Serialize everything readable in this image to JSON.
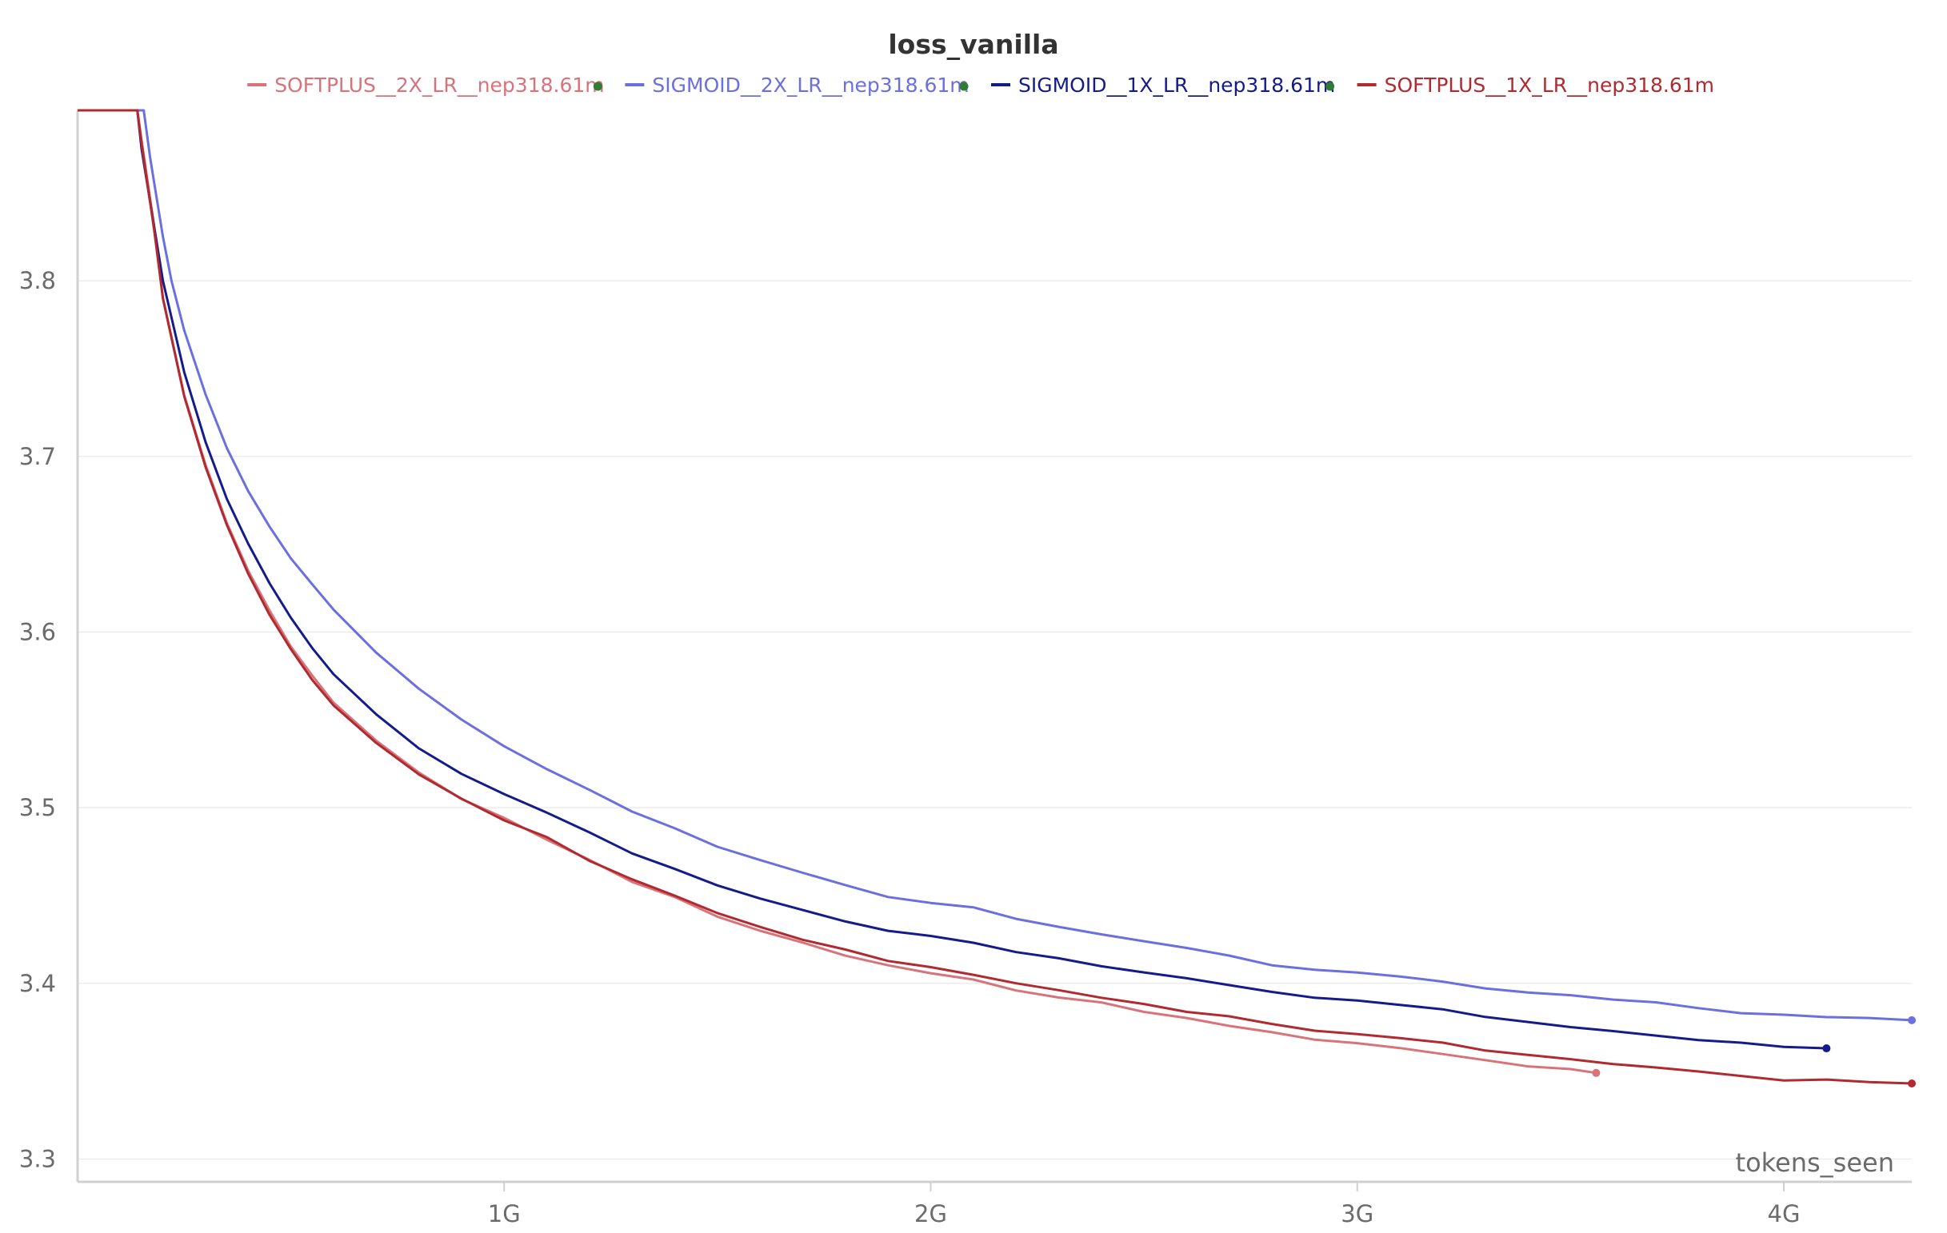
{
  "chart_data": {
    "type": "line",
    "title": "loss_vanilla",
    "xlabel": "tokens_seen",
    "ylabel": "",
    "xlim": [
      0,
      4.3
    ],
    "ylim": [
      3.287,
      3.897
    ],
    "x_unit": "G",
    "x_ticks": [
      {
        "value": 1,
        "label": "1G"
      },
      {
        "value": 2,
        "label": "2G"
      },
      {
        "value": 3,
        "label": "3G"
      },
      {
        "value": 4,
        "label": "4G"
      }
    ],
    "y_ticks": [
      {
        "value": 3.3,
        "label": "3.3"
      },
      {
        "value": 3.4,
        "label": "3.4"
      },
      {
        "value": 3.5,
        "label": "3.5"
      },
      {
        "value": 3.6,
        "label": "3.6"
      },
      {
        "value": 3.7,
        "label": "3.7"
      },
      {
        "value": 3.8,
        "label": "3.8"
      }
    ],
    "grid": "horizontal",
    "legend_position": "top",
    "series": [
      {
        "name": "SOFTPLUS__2X_LR__nep318.61m",
        "color": "#d9737a",
        "has_dot": true,
        "x": [
          0,
          0.14,
          0.15,
          0.18,
          0.2,
          0.25,
          0.3,
          0.35,
          0.4,
          0.45,
          0.5,
          0.55,
          0.6,
          0.7,
          0.8,
          0.9,
          1.0,
          1.1,
          1.2,
          1.3,
          1.4,
          1.5,
          1.6,
          1.7,
          1.8,
          1.9,
          2.0,
          2.1,
          2.2,
          2.3,
          2.4,
          2.5,
          2.6,
          2.7,
          2.8,
          2.9,
          3.0,
          3.1,
          3.2,
          3.3,
          3.4,
          3.5,
          3.56
        ],
        "y": [
          3.897,
          3.897,
          3.88,
          3.83,
          3.79,
          3.735,
          3.695,
          3.662,
          3.635,
          3.612,
          3.592,
          3.575,
          3.56,
          3.538,
          3.52,
          3.505,
          3.494,
          3.482,
          3.47,
          3.458,
          3.449,
          3.438,
          3.43,
          3.423,
          3.416,
          3.41,
          3.406,
          3.402,
          3.396,
          3.392,
          3.389,
          3.384,
          3.38,
          3.376,
          3.372,
          3.368,
          3.366,
          3.363,
          3.36,
          3.356,
          3.353,
          3.351,
          3.349
        ]
      },
      {
        "name": "SIGMOID__2X_LR__nep318.61m",
        "color": "#6b6fe0",
        "has_dot": true,
        "x": [
          0,
          0.155,
          0.17,
          0.2,
          0.22,
          0.25,
          0.3,
          0.35,
          0.4,
          0.45,
          0.5,
          0.55,
          0.6,
          0.7,
          0.8,
          0.9,
          1.0,
          1.1,
          1.2,
          1.3,
          1.4,
          1.5,
          1.6,
          1.7,
          1.8,
          1.9,
          2.0,
          2.1,
          2.2,
          2.3,
          2.4,
          2.5,
          2.6,
          2.7,
          2.8,
          2.9,
          3.0,
          3.1,
          3.2,
          3.3,
          3.4,
          3.5,
          3.6,
          3.7,
          3.8,
          3.9,
          4.0,
          4.1,
          4.2,
          4.3
        ],
        "y": [
          3.897,
          3.897,
          3.87,
          3.825,
          3.8,
          3.772,
          3.735,
          3.705,
          3.68,
          3.66,
          3.642,
          3.627,
          3.613,
          3.588,
          3.568,
          3.55,
          3.535,
          3.522,
          3.51,
          3.498,
          3.488,
          3.478,
          3.47,
          3.463,
          3.456,
          3.449,
          3.446,
          3.443,
          3.437,
          3.432,
          3.428,
          3.424,
          3.42,
          3.416,
          3.41,
          3.408,
          3.406,
          3.404,
          3.401,
          3.397,
          3.395,
          3.393,
          3.391,
          3.389,
          3.386,
          3.383,
          3.382,
          3.381,
          3.38,
          3.379
        ]
      },
      {
        "name": "SIGMOID__1X_LR__nep318.61m",
        "color": "#141c8c",
        "has_dot": true,
        "x": [
          0,
          0.14,
          0.15,
          0.18,
          0.2,
          0.25,
          0.3,
          0.35,
          0.4,
          0.45,
          0.5,
          0.55,
          0.6,
          0.7,
          0.8,
          0.9,
          1.0,
          1.1,
          1.2,
          1.3,
          1.4,
          1.5,
          1.6,
          1.7,
          1.8,
          1.9,
          2.0,
          2.1,
          2.2,
          2.3,
          2.4,
          2.5,
          2.6,
          2.7,
          2.8,
          2.9,
          3.0,
          3.1,
          3.2,
          3.3,
          3.4,
          3.5,
          3.6,
          3.7,
          3.8,
          3.9,
          4.0,
          4.1
        ],
        "y": [
          3.897,
          3.897,
          3.875,
          3.83,
          3.8,
          3.748,
          3.708,
          3.676,
          3.65,
          3.628,
          3.608,
          3.591,
          3.576,
          3.553,
          3.534,
          3.519,
          3.508,
          3.497,
          3.486,
          3.474,
          3.465,
          3.456,
          3.448,
          3.442,
          3.435,
          3.43,
          3.427,
          3.423,
          3.418,
          3.414,
          3.41,
          3.406,
          3.403,
          3.399,
          3.395,
          3.392,
          3.39,
          3.388,
          3.385,
          3.381,
          3.378,
          3.375,
          3.373,
          3.37,
          3.368,
          3.366,
          3.364,
          3.363
        ]
      },
      {
        "name": "SOFTPLUS__1X_LR__nep318.61m",
        "color": "#b02a30",
        "has_dot": false,
        "x": [
          0,
          0.14,
          0.15,
          0.18,
          0.2,
          0.25,
          0.3,
          0.35,
          0.4,
          0.45,
          0.5,
          0.55,
          0.6,
          0.7,
          0.8,
          0.9,
          1.0,
          1.1,
          1.2,
          1.3,
          1.4,
          1.5,
          1.6,
          1.7,
          1.8,
          1.9,
          2.0,
          2.1,
          2.2,
          2.3,
          2.4,
          2.5,
          2.6,
          2.7,
          2.8,
          2.9,
          3.0,
          3.1,
          3.2,
          3.3,
          3.4,
          3.5,
          3.6,
          3.7,
          3.8,
          3.9,
          4.0,
          4.1,
          4.2,
          4.3
        ],
        "y": [
          3.897,
          3.897,
          3.878,
          3.828,
          3.79,
          3.734,
          3.694,
          3.661,
          3.633,
          3.61,
          3.59,
          3.573,
          3.558,
          3.537,
          3.519,
          3.505,
          3.493,
          3.483,
          3.47,
          3.459,
          3.45,
          3.44,
          3.432,
          3.425,
          3.419,
          3.413,
          3.409,
          3.405,
          3.4,
          3.396,
          3.392,
          3.388,
          3.384,
          3.381,
          3.377,
          3.373,
          3.371,
          3.369,
          3.366,
          3.362,
          3.359,
          3.357,
          3.354,
          3.352,
          3.35,
          3.347,
          3.345,
          3.345,
          3.344,
          3.343
        ]
      }
    ]
  }
}
